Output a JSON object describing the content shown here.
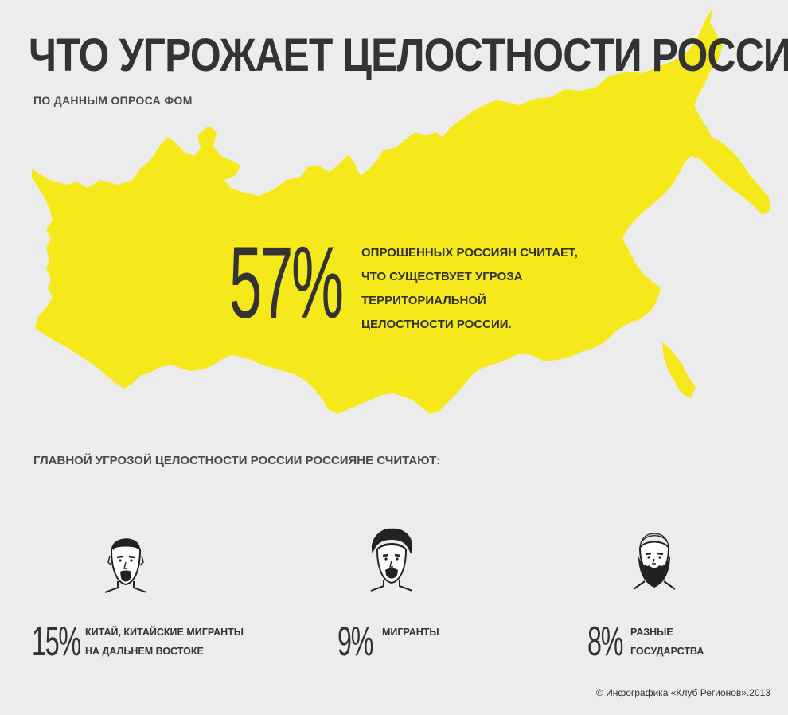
{
  "header": {
    "title": "ЧТО УГРОЖАЕТ ЦЕЛОСТНОСТИ РОССИИ",
    "subtitle": "ПО ДАННЫМ ОПРОСА ФОМ"
  },
  "map": {
    "fill_color": "#f5e91b",
    "main_percent": "57%",
    "main_text_lines": [
      "ОПРОШЕННЫХ РОССИЯН СЧИТАЕТ,",
      "ЧТО СУЩЕСТВУЕТ УГРОЗА",
      "ТЕРРИТОРИАЛЬНОЙ",
      "ЦЕЛОСТНОСТИ РОССИИ."
    ]
  },
  "threats": {
    "heading": "ГЛАВНОЙ УГРОЗОЙ ЦЕЛОСТНОСТИ РОССИИ РОССИЯНЕ СЧИТАЮТ:",
    "items": [
      {
        "percent": "15%",
        "lines": [
          "КИТАЙ, КИТАЙСКИЕ МИГРАНТЫ",
          "НА ДАЛЬНЕМ ВОСТОКЕ"
        ],
        "icon": "face-man-goatee-icon"
      },
      {
        "percent": "9%",
        "lines": [
          "МИГРАНТЫ"
        ],
        "icon": "face-man-curly-hair-icon"
      },
      {
        "percent": "8%",
        "lines": [
          "РАЗНЫЕ",
          "ГОСУДАРСТВА"
        ],
        "icon": "face-man-full-beard-icon"
      }
    ]
  },
  "footer": {
    "credit": "© Инфографика «Клуб Регионов».2013"
  }
}
